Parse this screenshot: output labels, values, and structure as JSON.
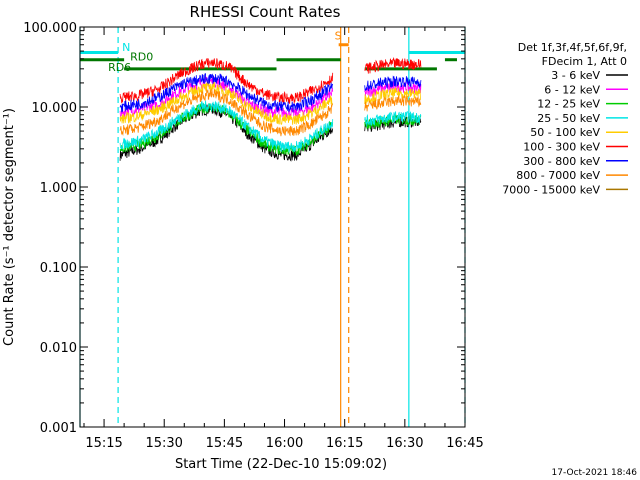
{
  "chart_data": {
    "type": "line",
    "title": "RHESSI Count Rates",
    "xlabel": "Start Time (22-Dec-10 15:09:02)",
    "ylabel": "Count Rate (s⁻¹ detector segment⁻¹)",
    "footer": "17-Oct-2021 18:46",
    "yscale": "log",
    "ylim": [
      0.001,
      100
    ],
    "xlim_minutes_after_1509": [
      0,
      96
    ],
    "y_ticks": [
      "0.001",
      "0.010",
      "0.100",
      "1.000",
      "10.000",
      "100.000"
    ],
    "x_ticks": [
      {
        "label": "15:15",
        "minute": 6
      },
      {
        "label": "15:30",
        "minute": 21
      },
      {
        "label": "15:45",
        "minute": 36
      },
      {
        "label": "16:00",
        "minute": 51
      },
      {
        "label": "16:15",
        "minute": 66
      },
      {
        "label": "16:30",
        "minute": 81
      },
      {
        "label": "16:45",
        "minute": 96
      }
    ],
    "legend": {
      "position": "right",
      "header": [
        "Det 1f,3f,4f,5f,6f,9f,",
        "FDecim 1, Att 0"
      ],
      "entries": [
        {
          "label": "3 - 6 keV",
          "color": "#000000"
        },
        {
          "label": "6 - 12 keV",
          "color": "#ff00ff"
        },
        {
          "label": "12 - 25 keV",
          "color": "#00cc00"
        },
        {
          "label": "25 - 50 keV",
          "color": "#00e5e5"
        },
        {
          "label": "50 - 100 keV",
          "color": "#ffcc00"
        },
        {
          "label": "100 - 300 keV",
          "color": "#ff0000"
        },
        {
          "label": "300 - 800 keV",
          "color": "#0000ff"
        },
        {
          "label": "800 - 7000 keV",
          "color": "#ff8800"
        },
        {
          "label": "7000 - 15000 keV",
          "color": "#aa7700"
        }
      ]
    },
    "series": [
      {
        "name": "3 - 6 keV",
        "color": "#000000",
        "segments": [
          [
            [
              10,
              2.5
            ],
            [
              15,
              3.0
            ],
            [
              20,
              4.0
            ],
            [
              25,
              6.5
            ],
            [
              30,
              9.0
            ],
            [
              33,
              9.5
            ],
            [
              37,
              8.0
            ],
            [
              42,
              4.5
            ],
            [
              46,
              3.0
            ],
            [
              50,
              2.5
            ],
            [
              54,
              2.5
            ],
            [
              58,
              3.5
            ],
            [
              63,
              5.5
            ]
          ],
          [
            [
              71,
              5.5
            ],
            [
              75,
              6.0
            ],
            [
              79,
              6.5
            ],
            [
              85,
              6.5
            ]
          ]
        ]
      },
      {
        "name": "6 - 12 keV",
        "color": "#ff00ff",
        "segments": [
          [
            [
              10,
              8.5
            ],
            [
              15,
              9.5
            ],
            [
              20,
              11
            ],
            [
              25,
              16
            ],
            [
              30,
              20
            ],
            [
              33,
              21
            ],
            [
              37,
              18
            ],
            [
              42,
              11
            ],
            [
              46,
              9.0
            ],
            [
              50,
              8.5
            ],
            [
              54,
              8.5
            ],
            [
              58,
              10
            ],
            [
              63,
              15
            ]
          ],
          [
            [
              71,
              15
            ],
            [
              75,
              17
            ],
            [
              79,
              18
            ],
            [
              85,
              17
            ]
          ]
        ]
      },
      {
        "name": "12 - 25 keV",
        "color": "#00cc00",
        "segments": [
          [
            [
              10,
              3.0
            ],
            [
              15,
              3.4
            ],
            [
              20,
              4.5
            ],
            [
              25,
              7.0
            ],
            [
              30,
              9.5
            ],
            [
              33,
              10
            ],
            [
              37,
              8.5
            ],
            [
              42,
              5.0
            ],
            [
              46,
              3.4
            ],
            [
              50,
              2.9
            ],
            [
              54,
              2.9
            ],
            [
              58,
              3.8
            ],
            [
              63,
              6.0
            ]
          ],
          [
            [
              71,
              6.0
            ],
            [
              75,
              6.5
            ],
            [
              79,
              7.0
            ],
            [
              85,
              6.8
            ]
          ]
        ]
      },
      {
        "name": "25 - 50 keV",
        "color": "#00e5e5",
        "segments": [
          [
            [
              10,
              3.4
            ],
            [
              15,
              3.8
            ],
            [
              20,
              5.0
            ],
            [
              25,
              7.6
            ],
            [
              30,
              10
            ],
            [
              33,
              10.5
            ],
            [
              37,
              9.2
            ],
            [
              42,
              5.5
            ],
            [
              46,
              3.8
            ],
            [
              50,
              3.2
            ],
            [
              54,
              3.2
            ],
            [
              58,
              4.2
            ],
            [
              63,
              6.5
            ]
          ],
          [
            [
              71,
              6.6
            ],
            [
              75,
              7.1
            ],
            [
              79,
              7.6
            ],
            [
              85,
              7.4
            ]
          ]
        ]
      },
      {
        "name": "50 - 100 keV",
        "color": "#ffcc00",
        "segments": [
          [
            [
              10,
              7.0
            ],
            [
              15,
              7.8
            ],
            [
              20,
              9.5
            ],
            [
              25,
              13
            ],
            [
              30,
              17
            ],
            [
              33,
              18
            ],
            [
              37,
              15.5
            ],
            [
              42,
              10
            ],
            [
              46,
              7.8
            ],
            [
              50,
              7.0
            ],
            [
              54,
              7.0
            ],
            [
              58,
              8.5
            ],
            [
              63,
              12.5
            ]
          ],
          [
            [
              71,
              12.5
            ],
            [
              75,
              14
            ],
            [
              79,
              15
            ],
            [
              85,
              14.5
            ]
          ]
        ]
      },
      {
        "name": "100 - 300 keV",
        "color": "#ff0000",
        "segments": [
          [
            [
              10,
              13
            ],
            [
              15,
              14
            ],
            [
              20,
              17
            ],
            [
              25,
              26
            ],
            [
              30,
              34
            ],
            [
              33,
              36
            ],
            [
              37,
              32
            ],
            [
              42,
              19
            ],
            [
              46,
              14.5
            ],
            [
              50,
              13
            ],
            [
              54,
              13
            ],
            [
              58,
              16
            ],
            [
              63,
              23
            ]
          ],
          [
            [
              71,
              30
            ],
            [
              75,
              33
            ],
            [
              79,
              35
            ],
            [
              85,
              34
            ]
          ]
        ]
      },
      {
        "name": "300 - 800 keV",
        "color": "#0000ff",
        "segments": [
          [
            [
              10,
              10
            ],
            [
              15,
              11
            ],
            [
              20,
              13.5
            ],
            [
              25,
              19
            ],
            [
              30,
              22
            ],
            [
              33,
              23
            ],
            [
              37,
              21
            ],
            [
              42,
              14
            ],
            [
              46,
              11
            ],
            [
              50,
              10
            ],
            [
              54,
              10
            ],
            [
              58,
              12.5
            ],
            [
              63,
              18
            ]
          ],
          [
            [
              71,
              18
            ],
            [
              75,
              20
            ],
            [
              79,
              21
            ],
            [
              85,
              20.5
            ]
          ]
        ]
      },
      {
        "name": "800 - 7000 keV",
        "color": "#ff8800",
        "segments": [
          [
            [
              10,
              5.0
            ],
            [
              15,
              5.6
            ],
            [
              20,
              7.0
            ],
            [
              25,
              10.5
            ],
            [
              30,
              13.5
            ],
            [
              33,
              14.5
            ],
            [
              37,
              12.5
            ],
            [
              42,
              7.8
            ],
            [
              46,
              5.7
            ],
            [
              50,
              5.0
            ],
            [
              54,
              5.0
            ],
            [
              58,
              6.3
            ],
            [
              63,
              9.5
            ]
          ],
          [
            [
              71,
              10
            ],
            [
              75,
              11
            ],
            [
              79,
              12
            ],
            [
              85,
              11.5
            ]
          ]
        ]
      },
      {
        "name": "7000 - 15000 keV",
        "color": "#aa7700",
        "segments": []
      }
    ],
    "annotations": [
      {
        "text": "N",
        "color": "#00e5e5",
        "minute": 10.5,
        "y": 50
      },
      {
        "text": "RD0",
        "color": "#007700",
        "minute": 12.5,
        "y": 38
      },
      {
        "text": "RD6",
        "color": "#007700",
        "minute": 7.0,
        "y": 28
      },
      {
        "text": "S",
        "color": "#ff8800",
        "minute": 63.5,
        "y": 70
      }
    ],
    "status_bars": [
      {
        "name": "N",
        "color": "#00e5e5",
        "y": 48,
        "segments": [
          [
            0,
            9.5
          ],
          [
            82,
            96
          ]
        ]
      },
      {
        "name": "RD0",
        "color": "#007700",
        "y": 39,
        "segments": [
          [
            0,
            11
          ],
          [
            49,
            65
          ],
          [
            91,
            94
          ]
        ]
      },
      {
        "name": "RD6",
        "color": "#007700",
        "y": 30,
        "segments": [
          [
            11,
            49
          ],
          [
            71,
            89
          ]
        ]
      },
      {
        "name": "S",
        "color": "#ff8800",
        "y": 60,
        "segments": [
          [
            64.5,
            67
          ]
        ]
      }
    ],
    "vertical_lines": [
      {
        "minute": 0,
        "color": "#00e5e5",
        "dashed": false
      },
      {
        "minute": 9.5,
        "color": "#00e5e5",
        "dashed": true
      },
      {
        "minute": 65,
        "color": "#ff8800",
        "dashed": false
      },
      {
        "minute": 67,
        "color": "#ff8800",
        "dashed": true
      },
      {
        "minute": 82,
        "color": "#00e5e5",
        "dashed": false
      },
      {
        "minute": 96,
        "color": "#00e5e5",
        "dashed": true
      }
    ]
  }
}
